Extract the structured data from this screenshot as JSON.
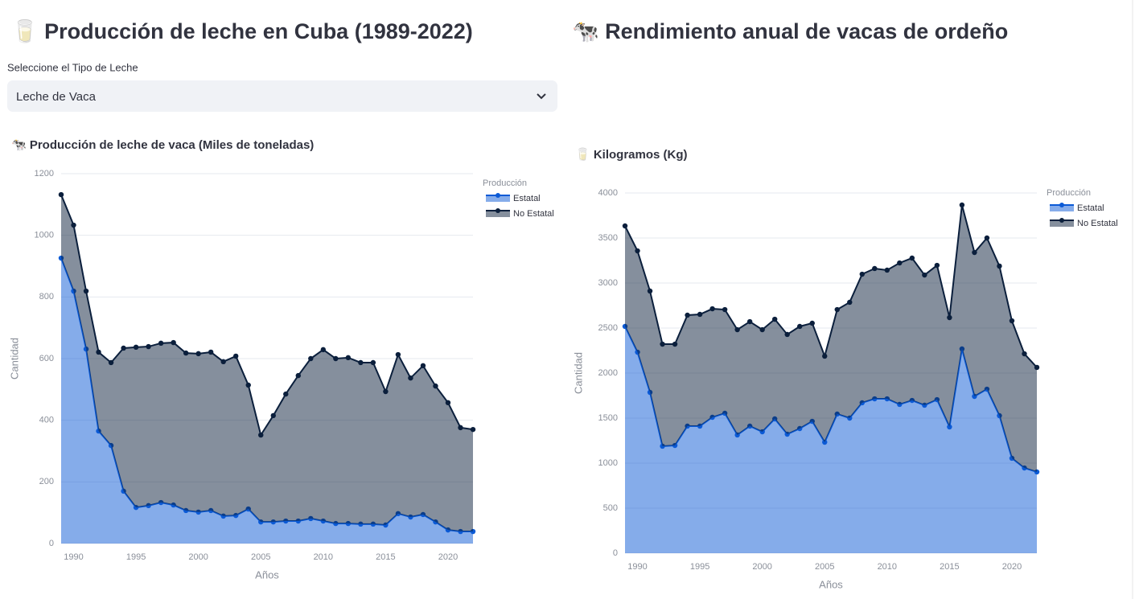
{
  "header_left": "🥛 Producción de leche en Cuba (1989-2022)",
  "header_right": "🐄 Rendimiento anual de vacas de ordeño",
  "select": {
    "label": "Seleccione el Tipo de Leche",
    "value": "Leche de Vaca"
  },
  "chart_data": [
    {
      "type": "area",
      "stacked": true,
      "title": "🐄 Producción de leche de vaca (Miles de toneladas)",
      "x_label": "Años",
      "y_label": "Cantidad",
      "legend_title": "Producción",
      "grid": true,
      "x": [
        1989,
        1990,
        1991,
        1992,
        1993,
        1994,
        1995,
        1996,
        1997,
        1998,
        1999,
        2000,
        2001,
        2002,
        2003,
        2004,
        2005,
        2006,
        2007,
        2008,
        2009,
        2010,
        2011,
        2012,
        2013,
        2014,
        2015,
        2016,
        2017,
        2018,
        2019,
        2020,
        2021,
        2022
      ],
      "xlim": [
        1989,
        2022
      ],
      "xticks": [
        1990,
        1995,
        2000,
        2005,
        2010,
        2015,
        2020
      ],
      "ylim": [
        0,
        1200
      ],
      "yticks": [
        0,
        200,
        400,
        600,
        800,
        1000,
        1200
      ],
      "series": [
        {
          "name": "Estatal",
          "color": "#0b5ad6",
          "values": [
            926,
            819,
            631,
            365,
            318,
            170,
            117,
            123,
            133,
            125,
            107,
            102,
            107,
            89,
            91,
            112,
            70,
            70,
            73,
            73,
            81,
            73,
            65,
            65,
            63,
            63,
            60,
            97,
            86,
            94,
            70,
            44,
            39,
            39
          ]
        },
        {
          "name": "No Estatal",
          "color": "#0b1f3c",
          "values": [
            206,
            214,
            188,
            256,
            269,
            464,
            520,
            516,
            517,
            527,
            511,
            514,
            514,
            501,
            517,
            402,
            282,
            345,
            412,
            472,
            519,
            556,
            535,
            538,
            524,
            524,
            433,
            516,
            451,
            483,
            441,
            413,
            337,
            331
          ]
        }
      ]
    },
    {
      "type": "area",
      "stacked": true,
      "title": "🥛 Kilogramos (Kg)",
      "x_label": "Años",
      "y_label": "Cantidad",
      "legend_title": "Producción",
      "grid": true,
      "x": [
        1989,
        1990,
        1991,
        1992,
        1993,
        1994,
        1995,
        1996,
        1997,
        1998,
        1999,
        2000,
        2001,
        2002,
        2003,
        2004,
        2005,
        2006,
        2007,
        2008,
        2009,
        2010,
        2011,
        2012,
        2013,
        2014,
        2015,
        2016,
        2017,
        2018,
        2019,
        2020,
        2021,
        2022
      ],
      "xlim": [
        1989,
        2022
      ],
      "xticks": [
        1990,
        1995,
        2000,
        2005,
        2010,
        2015,
        2020
      ],
      "ylim": [
        0,
        4000
      ],
      "yticks": [
        0,
        500,
        1000,
        1500,
        2000,
        2500,
        3000,
        3500,
        4000
      ],
      "series": [
        {
          "name": "Estatal",
          "color": "#0b5ad6",
          "values": [
            2518,
            2232,
            1786,
            1188,
            1196,
            1411,
            1411,
            1509,
            1554,
            1313,
            1411,
            1348,
            1491,
            1321,
            1384,
            1464,
            1232,
            1545,
            1500,
            1670,
            1714,
            1714,
            1652,
            1696,
            1643,
            1705,
            1402,
            2268,
            1741,
            1821,
            1527,
            1054,
            946,
            902
          ]
        },
        {
          "name": "No Estatal",
          "color": "#0b1f3c",
          "values": [
            1116,
            1125,
            1125,
            1133,
            1125,
            1232,
            1241,
            1205,
            1151,
            1169,
            1160,
            1134,
            1107,
            1108,
            1134,
            1090,
            956,
            1160,
            1286,
            1428,
            1447,
            1429,
            1571,
            1581,
            1446,
            1491,
            1214,
            1598,
            1598,
            1679,
            1661,
            1526,
            1268,
            1161
          ]
        }
      ]
    }
  ]
}
